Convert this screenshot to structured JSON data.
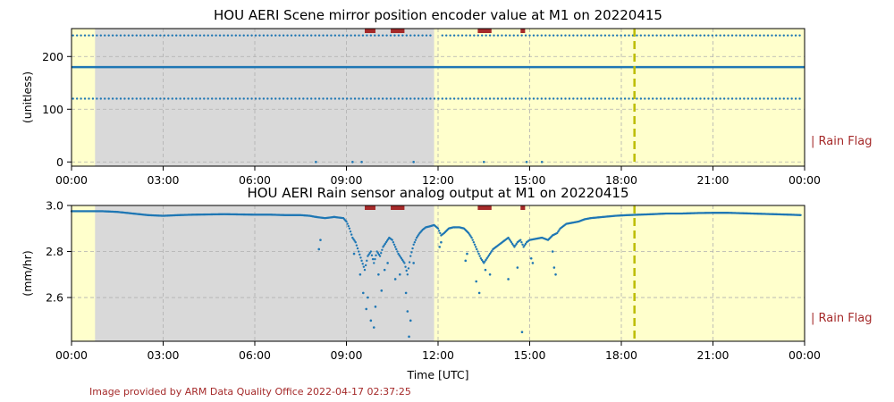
{
  "credit": "Image provided by ARM Data Quality Office 2022-04-17 02:37:25",
  "x_ticks": [
    "00:00",
    "03:00",
    "06:00",
    "09:00",
    "12:00",
    "15:00",
    "18:00",
    "21:00",
    "00:00"
  ],
  "xlabel": "Time [UTC]",
  "colors": {
    "background": "#ffffcc",
    "night_shade": "#d9d9d9",
    "series": "#1f77b4",
    "rain_flag": "#a52a2a",
    "marker_line": "#bdbd00"
  },
  "chart_data": [
    {
      "type": "scatter",
      "title": "HOU AERI Scene mirror position encoder value at M1 on 20220415",
      "ylabel": "(unitless)",
      "xlabel": "",
      "xlim": [
        0,
        24
      ],
      "ylim": [
        -8,
        253
      ],
      "y_ticks": [
        "0",
        "100",
        "200"
      ],
      "y_tick_values": [
        0,
        100,
        200
      ],
      "shaded_interval_hours": [
        0.77,
        11.87
      ],
      "vertical_marker_hours": 18.43,
      "rain_flag_label": "| Rain Flag",
      "rain_flag_intervals_hours": [
        [
          9.6,
          9.95
        ],
        [
          10.45,
          10.9
        ],
        [
          13.3,
          13.75
        ],
        [
          14.7,
          14.85
        ]
      ],
      "constant_line_value": 180,
      "levels": [
        240,
        120,
        0
      ],
      "sample_points": [
        {
          "x": 0.1,
          "y": 240
        },
        {
          "x": 3.0,
          "y": 240
        },
        {
          "x": 9.0,
          "y": 240
        },
        {
          "x": 15.0,
          "y": 240
        },
        {
          "x": 23.8,
          "y": 240
        },
        {
          "x": 0.2,
          "y": 120
        },
        {
          "x": 6.0,
          "y": 120
        },
        {
          "x": 12.0,
          "y": 120
        },
        {
          "x": 18.0,
          "y": 120
        },
        {
          "x": 23.9,
          "y": 120
        },
        {
          "x": 8.0,
          "y": 0
        },
        {
          "x": 9.2,
          "y": 0
        },
        {
          "x": 9.5,
          "y": 0
        },
        {
          "x": 11.2,
          "y": 0
        },
        {
          "x": 13.5,
          "y": 0
        },
        {
          "x": 14.9,
          "y": 0
        },
        {
          "x": 15.4,
          "y": 0
        }
      ]
    },
    {
      "type": "scatter",
      "title": "HOU AERI Rain sensor analog output at M1 on 20220415",
      "ylabel": "(mm/hr)",
      "xlabel": "Time [UTC]",
      "xlim": [
        0,
        24
      ],
      "ylim": [
        2.41,
        3.0
      ],
      "y_ticks": [
        "2.6",
        "2.8",
        "3.0"
      ],
      "y_tick_values": [
        2.6,
        2.8,
        3.0
      ],
      "shaded_interval_hours": [
        0.77,
        11.87
      ],
      "vertical_marker_hours": 18.43,
      "rain_flag_label": "| Rain Flag",
      "rain_flag_intervals_hours": [
        [
          9.6,
          9.95
        ],
        [
          10.45,
          10.9
        ],
        [
          13.3,
          13.75
        ],
        [
          14.7,
          14.85
        ]
      ],
      "series_points": [
        [
          0.0,
          2.975
        ],
        [
          0.5,
          2.975
        ],
        [
          1.0,
          2.975
        ],
        [
          1.5,
          2.972
        ],
        [
          2.0,
          2.965
        ],
        [
          2.5,
          2.958
        ],
        [
          3.0,
          2.955
        ],
        [
          3.5,
          2.958
        ],
        [
          4.0,
          2.96
        ],
        [
          5.0,
          2.962
        ],
        [
          6.0,
          2.96
        ],
        [
          6.5,
          2.96
        ],
        [
          7.0,
          2.958
        ],
        [
          7.5,
          2.958
        ],
        [
          7.8,
          2.955
        ],
        [
          8.0,
          2.95
        ],
        [
          8.3,
          2.945
        ],
        [
          8.6,
          2.95
        ],
        [
          8.9,
          2.945
        ],
        [
          9.0,
          2.93
        ],
        [
          9.1,
          2.9
        ],
        [
          9.2,
          2.86
        ],
        [
          9.3,
          2.84
        ],
        [
          9.4,
          2.8
        ],
        [
          9.5,
          2.76
        ],
        [
          9.6,
          2.72
        ],
        [
          9.7,
          2.78
        ],
        [
          9.8,
          2.8
        ],
        [
          9.9,
          2.75
        ],
        [
          10.0,
          2.8
        ],
        [
          10.1,
          2.78
        ],
        [
          10.2,
          2.82
        ],
        [
          10.3,
          2.84
        ],
        [
          10.4,
          2.86
        ],
        [
          10.5,
          2.85
        ],
        [
          10.6,
          2.82
        ],
        [
          10.7,
          2.79
        ],
        [
          10.8,
          2.77
        ],
        [
          10.9,
          2.75
        ],
        [
          11.0,
          2.7
        ],
        [
          11.1,
          2.78
        ],
        [
          11.2,
          2.83
        ],
        [
          11.3,
          2.86
        ],
        [
          11.4,
          2.88
        ],
        [
          11.5,
          2.895
        ],
        [
          11.6,
          2.905
        ],
        [
          11.75,
          2.91
        ],
        [
          11.87,
          2.915
        ],
        [
          12.0,
          2.9
        ],
        [
          12.1,
          2.87
        ],
        [
          12.2,
          2.88
        ],
        [
          12.35,
          2.9
        ],
        [
          12.5,
          2.905
        ],
        [
          12.7,
          2.905
        ],
        [
          12.85,
          2.9
        ],
        [
          13.0,
          2.88
        ],
        [
          13.1,
          2.86
        ],
        [
          13.2,
          2.83
        ],
        [
          13.3,
          2.8
        ],
        [
          13.4,
          2.77
        ],
        [
          13.5,
          2.75
        ],
        [
          13.6,
          2.77
        ],
        [
          13.7,
          2.79
        ],
        [
          13.8,
          2.81
        ],
        [
          13.9,
          2.82
        ],
        [
          14.0,
          2.83
        ],
        [
          14.1,
          2.84
        ],
        [
          14.2,
          2.85
        ],
        [
          14.3,
          2.86
        ],
        [
          14.4,
          2.84
        ],
        [
          14.5,
          2.82
        ],
        [
          14.6,
          2.84
        ],
        [
          14.7,
          2.85
        ],
        [
          14.8,
          2.82
        ],
        [
          14.9,
          2.84
        ],
        [
          15.0,
          2.85
        ],
        [
          15.2,
          2.855
        ],
        [
          15.4,
          2.86
        ],
        [
          15.6,
          2.85
        ],
        [
          15.75,
          2.87
        ],
        [
          15.9,
          2.88
        ],
        [
          16.0,
          2.9
        ],
        [
          16.1,
          2.91
        ],
        [
          16.2,
          2.92
        ],
        [
          16.4,
          2.925
        ],
        [
          16.6,
          2.93
        ],
        [
          16.8,
          2.94
        ],
        [
          17.0,
          2.945
        ],
        [
          17.4,
          2.95
        ],
        [
          17.8,
          2.955
        ],
        [
          18.2,
          2.958
        ],
        [
          18.6,
          2.96
        ],
        [
          19.0,
          2.962
        ],
        [
          19.5,
          2.965
        ],
        [
          20.0,
          2.965
        ],
        [
          20.5,
          2.967
        ],
        [
          21.0,
          2.968
        ],
        [
          21.5,
          2.968
        ],
        [
          22.0,
          2.966
        ],
        [
          22.5,
          2.964
        ],
        [
          23.0,
          2.962
        ],
        [
          23.5,
          2.96
        ],
        [
          23.9,
          2.958
        ]
      ],
      "scatter_outliers": [
        [
          8.1,
          2.81
        ],
        [
          8.15,
          2.85
        ],
        [
          9.25,
          2.79
        ],
        [
          9.45,
          2.7
        ],
        [
          9.55,
          2.62
        ],
        [
          9.65,
          2.55
        ],
        [
          9.7,
          2.6
        ],
        [
          9.8,
          2.5
        ],
        [
          9.9,
          2.47
        ],
        [
          9.95,
          2.56
        ],
        [
          10.05,
          2.7
        ],
        [
          10.15,
          2.63
        ],
        [
          10.25,
          2.72
        ],
        [
          10.35,
          2.75
        ],
        [
          10.6,
          2.68
        ],
        [
          10.75,
          2.7
        ],
        [
          10.95,
          2.62
        ],
        [
          11.0,
          2.54
        ],
        [
          11.05,
          2.43
        ],
        [
          11.1,
          2.5
        ],
        [
          11.2,
          2.75
        ],
        [
          12.05,
          2.82
        ],
        [
          12.1,
          2.84
        ],
        [
          12.9,
          2.76
        ],
        [
          12.95,
          2.79
        ],
        [
          13.25,
          2.67
        ],
        [
          13.35,
          2.62
        ],
        [
          13.55,
          2.72
        ],
        [
          13.7,
          2.7
        ],
        [
          14.3,
          2.68
        ],
        [
          14.6,
          2.73
        ],
        [
          14.75,
          2.45
        ],
        [
          15.05,
          2.77
        ],
        [
          15.1,
          2.75
        ],
        [
          15.75,
          2.8
        ],
        [
          15.8,
          2.73
        ],
        [
          15.85,
          2.7
        ]
      ]
    }
  ]
}
